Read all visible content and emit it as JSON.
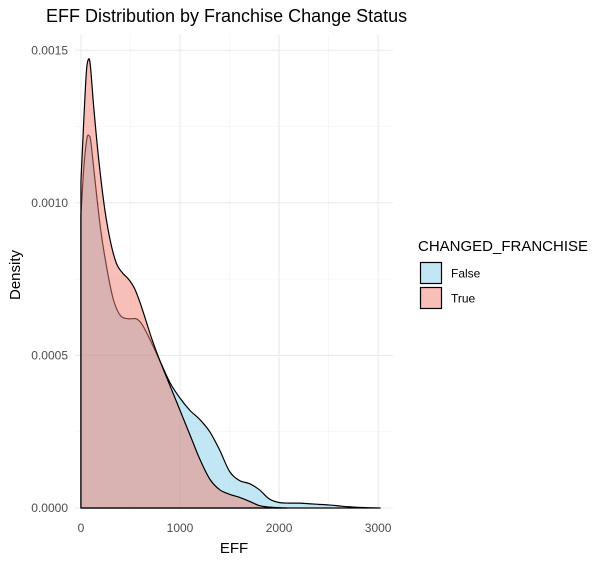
{
  "chart_data": {
    "type": "area",
    "subtype": "density",
    "title": "EFF Distribution by Franchise Change Status",
    "xlabel": "EFF",
    "ylabel": "Density",
    "xlim": [
      -60,
      3150
    ],
    "ylim": [
      0,
      0.00155
    ],
    "x_ticks": [
      0,
      1000,
      2000,
      3000
    ],
    "x_tick_labels": [
      "0",
      "1000",
      "2000",
      "3000"
    ],
    "y_ticks": [
      0,
      0.0005,
      0.001,
      0.0015
    ],
    "y_tick_labels": [
      "0.0000",
      "0.0005",
      "0.0010",
      "0.0015"
    ],
    "grid": true,
    "legend": {
      "title": "CHANGED_FRANCHISE",
      "position": "right",
      "entries": [
        "False",
        "True"
      ]
    },
    "series": [
      {
        "name": "False",
        "color": "#87ceeb",
        "opacity": 0.5,
        "points": [
          [
            0,
            0.00096
          ],
          [
            30,
            0.00112
          ],
          [
            60,
            0.00121
          ],
          [
            80,
            0.00122
          ],
          [
            100,
            0.0012
          ],
          [
            140,
            0.00108
          ],
          [
            200,
            0.00091
          ],
          [
            270,
            0.00077
          ],
          [
            330,
            0.00068
          ],
          [
            400,
            0.00063
          ],
          [
            480,
            0.00062
          ],
          [
            560,
            0.00062
          ],
          [
            620,
            0.0006
          ],
          [
            700,
            0.00055
          ],
          [
            800,
            0.00048
          ],
          [
            900,
            0.00041
          ],
          [
            1000,
            0.00036
          ],
          [
            1100,
            0.00032
          ],
          [
            1200,
            0.00029
          ],
          [
            1300,
            0.00025
          ],
          [
            1400,
            0.00019
          ],
          [
            1500,
            0.00012
          ],
          [
            1600,
            9e-05
          ],
          [
            1700,
            8e-05
          ],
          [
            1800,
            6e-05
          ],
          [
            1900,
            3e-05
          ],
          [
            2000,
            1.8e-05
          ],
          [
            2100,
            1.6e-05
          ],
          [
            2200,
            1.6e-05
          ],
          [
            2300,
            1.4e-05
          ],
          [
            2400,
            1.2e-05
          ],
          [
            2500,
            1e-05
          ],
          [
            2600,
            7e-06
          ],
          [
            2700,
            4e-06
          ],
          [
            2800,
            2e-06
          ],
          [
            2900,
            1e-06
          ],
          [
            3020,
            0
          ]
        ]
      },
      {
        "name": "True",
        "color": "#f08070",
        "opacity": 0.5,
        "points": [
          [
            0,
            0.00107
          ],
          [
            30,
            0.00128
          ],
          [
            55,
            0.00143
          ],
          [
            75,
            0.00147
          ],
          [
            95,
            0.00145
          ],
          [
            130,
            0.00131
          ],
          [
            180,
            0.00114
          ],
          [
            240,
            0.00098
          ],
          [
            300,
            0.00087
          ],
          [
            360,
            0.0008
          ],
          [
            420,
            0.00077
          ],
          [
            480,
            0.00075
          ],
          [
            540,
            0.00072
          ],
          [
            600,
            0.00067
          ],
          [
            660,
            0.00061
          ],
          [
            720,
            0.00055
          ],
          [
            800,
            0.00048
          ],
          [
            900,
            0.0004
          ],
          [
            1000,
            0.00032
          ],
          [
            1100,
            0.00024
          ],
          [
            1200,
            0.00016
          ],
          [
            1300,
            9.5e-05
          ],
          [
            1400,
            6e-05
          ],
          [
            1500,
            4.5e-05
          ],
          [
            1600,
            3.5e-05
          ],
          [
            1700,
            2.2e-05
          ],
          [
            1800,
            8e-06
          ],
          [
            1900,
            3e-06
          ],
          [
            2000,
            1e-06
          ],
          [
            2080,
            0
          ]
        ]
      }
    ]
  }
}
